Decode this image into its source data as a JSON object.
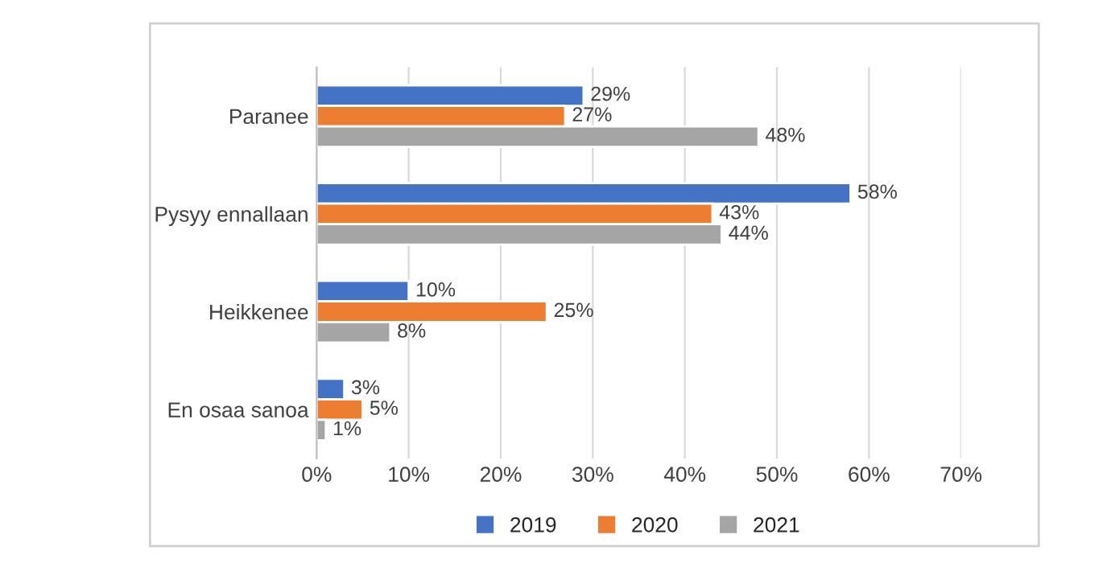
{
  "chart_data": {
    "type": "bar",
    "orientation": "horizontal",
    "categories": [
      "Paranee",
      "Pysyy ennallaan",
      "Heikkenee",
      "En osaa sanoa"
    ],
    "series": [
      {
        "name": "2019",
        "color": "#4472c4",
        "values": [
          29,
          58,
          10,
          3
        ],
        "value_labels": [
          "29%",
          "58%",
          "10%",
          "3%"
        ]
      },
      {
        "name": "2020",
        "color": "#ed7d31",
        "values": [
          27,
          43,
          25,
          5
        ],
        "value_labels": [
          "27%",
          "43%",
          "25%",
          "5%"
        ]
      },
      {
        "name": "2021",
        "color": "#a5a5a5",
        "values": [
          48,
          44,
          8,
          1
        ],
        "value_labels": [
          "48%",
          "44%",
          "8%",
          "1%"
        ]
      }
    ],
    "xlim": [
      0,
      70
    ],
    "xticks": [
      {
        "value": 0,
        "label": "0%"
      },
      {
        "value": 10,
        "label": "10%"
      },
      {
        "value": 20,
        "label": "20%"
      },
      {
        "value": 30,
        "label": "30%"
      },
      {
        "value": 40,
        "label": "40%"
      },
      {
        "value": 50,
        "label": "50%"
      },
      {
        "value": 60,
        "label": "60%"
      },
      {
        "value": 70,
        "label": "70%"
      }
    ],
    "grid": "x",
    "legend": "bottom"
  }
}
